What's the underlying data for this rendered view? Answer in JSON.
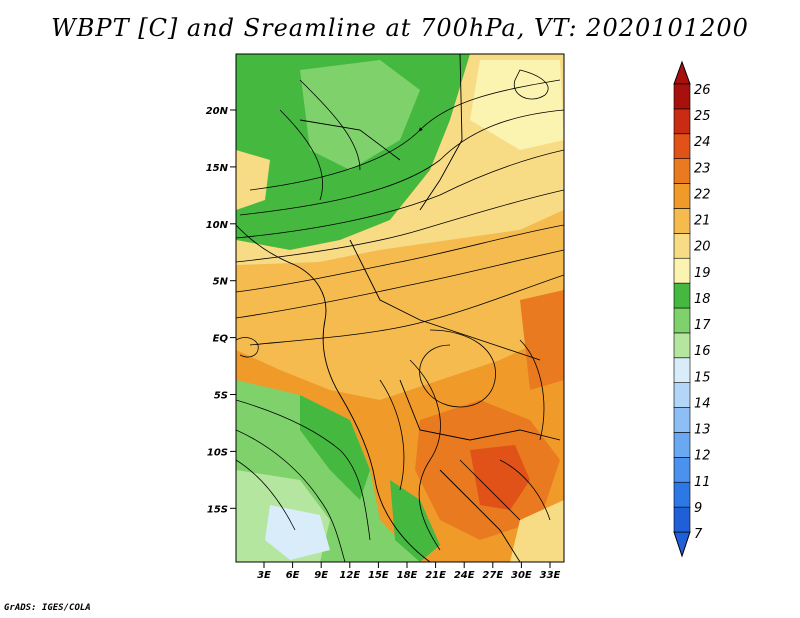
{
  "title": "WBPT [C] and Sreamline at 700hPa, VT: 2020101200",
  "credit": "GrADS: IGES/COLA",
  "map": {
    "lat_ticks": [
      "20N",
      "15N",
      "10N",
      "5N",
      "EQ",
      "5S",
      "10S",
      "15S"
    ],
    "lon_ticks": [
      "3E",
      "6E",
      "9E",
      "12E",
      "15E",
      "18E",
      "21E",
      "24E",
      "27E",
      "30E",
      "33E"
    ]
  },
  "colorbar": {
    "labels": [
      "7",
      "9",
      "11",
      "12",
      "13",
      "14",
      "15",
      "16",
      "17",
      "18",
      "19",
      "20",
      "21",
      "22",
      "23",
      "24",
      "25",
      "26"
    ],
    "colors": [
      "#1f5fd8",
      "#2c78e4",
      "#4b92ee",
      "#6aa8f2",
      "#8dbef5",
      "#b3d5f8",
      "#d8ecfa",
      "#b5e6a0",
      "#7fd26b",
      "#45b840",
      "#fbf3b0",
      "#f8dc85",
      "#f5bb4f",
      "#f09a2a",
      "#ea7a1f",
      "#e05218",
      "#c92c12",
      "#a8100d"
    ]
  }
}
